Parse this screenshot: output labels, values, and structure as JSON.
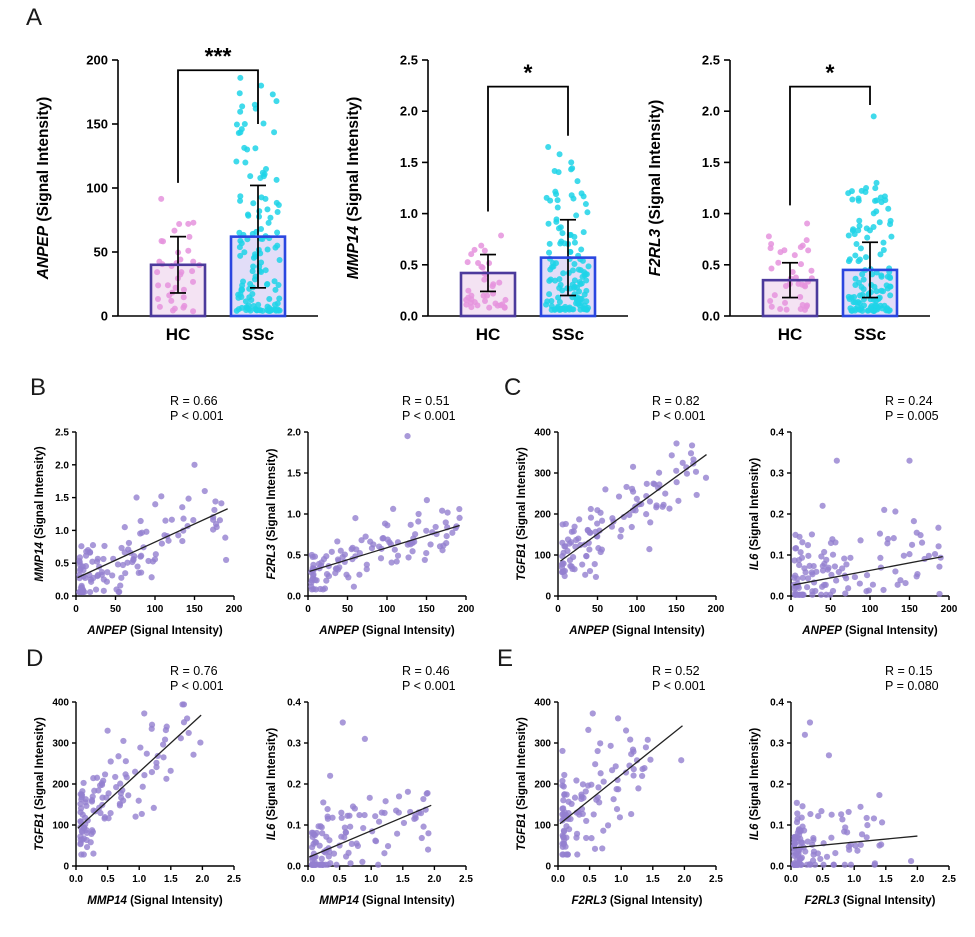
{
  "figure": {
    "panels": {
      "a": "A",
      "b": "B",
      "c": "C",
      "d": "D",
      "e": "E"
    }
  },
  "colors": {
    "hc_dot": "#e593dd",
    "hc_bar_fill": "#f4e3f3",
    "hc_bar_border": "#4c3a9c",
    "ssc_dot": "#1fd4e8",
    "ssc_bar_fill": "#e2ddf8",
    "ssc_bar_border": "#2a46e0",
    "scatter_dot": "#9480cf",
    "axis": "#000000",
    "trend_line": "#222222"
  },
  "chart_data": [
    {
      "id": "a1",
      "type": "bar",
      "panel": "A",
      "ylabel": {
        "gene": "ANPEP",
        "rest": " (Signal Intensity)"
      },
      "categories": [
        "HC",
        "SSc"
      ],
      "values": [
        40,
        62
      ],
      "errors": [
        22,
        40
      ],
      "ylim": [
        0,
        200
      ],
      "yticks": [
        0,
        50,
        100,
        150,
        200
      ],
      "ytick_labels": [
        "0",
        "50",
        "100",
        "150",
        "200"
      ],
      "significance": "***",
      "bracket": {
        "top": 192,
        "left_to": 104,
        "right_to": 150
      },
      "dots": [
        {
          "group": "HC",
          "n": 38,
          "min": 3,
          "max": 95,
          "pow": 1.7,
          "extra": []
        },
        {
          "group": "SSc",
          "n": 128,
          "min": 4,
          "max": 175,
          "pow": 2.4,
          "extra": [
            186,
            180,
            162,
            150,
            143
          ]
        }
      ],
      "seed": 11
    },
    {
      "id": "a2",
      "type": "bar",
      "panel": "A",
      "ylabel": {
        "gene": "MMP14",
        "rest": " (Signal Intensity)"
      },
      "categories": [
        "HC",
        "SSc"
      ],
      "values": [
        0.42,
        0.57
      ],
      "errors": [
        0.18,
        0.37
      ],
      "ylim": [
        0,
        2.5
      ],
      "yticks": [
        0,
        0.5,
        1,
        1.5,
        2,
        2.5
      ],
      "ytick_labels": [
        "0.0",
        "0.5",
        "1.0",
        "1.5",
        "2.0",
        "2.5"
      ],
      "significance": "*",
      "bracket": {
        "top": 2.24,
        "left_to": 1.02,
        "right_to": 1.76
      },
      "dots": [
        {
          "group": "HC",
          "n": 38,
          "min": 0.08,
          "max": 0.92,
          "pow": 1.6,
          "extra": []
        },
        {
          "group": "SSc",
          "n": 128,
          "min": 0.06,
          "max": 1.45,
          "pow": 2.2,
          "extra": [
            1.65,
            1.58,
            1.5
          ]
        }
      ],
      "seed": 22
    },
    {
      "id": "a3",
      "type": "bar",
      "panel": "A",
      "ylabel": {
        "gene": "F2RL3",
        "rest": " (Signal Intensity)"
      },
      "categories": [
        "HC",
        "SSc"
      ],
      "values": [
        0.35,
        0.45
      ],
      "errors": [
        0.17,
        0.27
      ],
      "ylim": [
        0,
        2.5
      ],
      "yticks": [
        0,
        0.5,
        1,
        1.5,
        2,
        2.5
      ],
      "ytick_labels": [
        "0.0",
        "0.5",
        "1.0",
        "1.5",
        "2.0",
        "2.5"
      ],
      "significance": "*",
      "bracket": {
        "top": 2.24,
        "left_to": 1.08,
        "right_to": 2.06
      },
      "dots": [
        {
          "group": "HC",
          "n": 38,
          "min": 0.06,
          "max": 0.98,
          "pow": 2.3,
          "extra": []
        },
        {
          "group": "SSc",
          "n": 128,
          "min": 0.05,
          "max": 1.25,
          "pow": 2.3,
          "extra": [
            1.95,
            1.3,
            1.22
          ]
        }
      ],
      "seed": 33
    },
    {
      "id": "b1",
      "type": "scatter",
      "panel": "B",
      "xlabel": {
        "gene": "ANPEP",
        "rest": " (Signal Intensity)"
      },
      "ylabel": {
        "gene": "MMP14",
        "rest": " (Signal Intensity)"
      },
      "stats": {
        "r": "R = 0.66",
        "p": "P < 0.001"
      },
      "xlim": [
        0,
        200
      ],
      "xticks": [
        0,
        50,
        100,
        150,
        200
      ],
      "xtick_labels": [
        "0",
        "50",
        "100",
        "150",
        "200"
      ],
      "ylim": [
        0,
        2.5
      ],
      "yticks": [
        0,
        0.5,
        1,
        1.5,
        2,
        2.5
      ],
      "ytick_labels": [
        "0.0",
        "0.5",
        "1.0",
        "1.5",
        "2.0",
        "2.5"
      ],
      "n": 112,
      "x_dist": {
        "min": 4,
        "max": 192,
        "pow": 2.0
      },
      "trend": {
        "x1": 2,
        "y1": 0.28,
        "x2": 192,
        "y2": 1.33
      },
      "noise": 0.25,
      "ymin_clamp": 0.06,
      "extra_points": [
        [
          150,
          2.0
        ],
        [
          163,
          1.6
        ],
        [
          108,
          1.52
        ],
        [
          178,
          1.05
        ],
        [
          190,
          0.55
        ]
      ],
      "seed": 101
    },
    {
      "id": "b2",
      "type": "scatter",
      "panel": "B",
      "xlabel": {
        "gene": "ANPEP",
        "rest": " (Signal Intensity)"
      },
      "ylabel": {
        "gene": "F2RL3",
        "rest": " (Signal Intensity)"
      },
      "stats": {
        "r": "R = 0.51",
        "p": "P < 0.001"
      },
      "xlim": [
        0,
        200
      ],
      "xticks": [
        0,
        50,
        100,
        150,
        200
      ],
      "xtick_labels": [
        "0",
        "50",
        "100",
        "150",
        "200"
      ],
      "ylim": [
        0,
        2.0
      ],
      "yticks": [
        0,
        0.5,
        1,
        1.5,
        2
      ],
      "ytick_labels": [
        "0.0",
        "0.5",
        "1.0",
        "1.5",
        "2.0"
      ],
      "n": 112,
      "x_dist": {
        "min": 4,
        "max": 192,
        "pow": 2.0
      },
      "trend": {
        "x1": 2,
        "y1": 0.3,
        "x2": 192,
        "y2": 0.86
      },
      "noise": 0.16,
      "ymin_clamp": 0.08,
      "extra_points": [
        [
          126,
          1.95
        ],
        [
          140,
          1.0
        ],
        [
          60,
          0.95
        ],
        [
          188,
          0.85
        ]
      ],
      "seed": 102
    },
    {
      "id": "c1",
      "type": "scatter",
      "panel": "C",
      "xlabel": {
        "gene": "ANPEP",
        "rest": " (Signal Intensity)"
      },
      "ylabel": {
        "gene": "TGFB1",
        "rest": " (Signal Intensity)"
      },
      "stats": {
        "r": "R = 0.82",
        "p": "P < 0.001"
      },
      "xlim": [
        0,
        200
      ],
      "xticks": [
        0,
        50,
        100,
        150,
        200
      ],
      "xtick_labels": [
        "0",
        "50",
        "100",
        "150",
        "200"
      ],
      "ylim": [
        0,
        400
      ],
      "yticks": [
        0,
        100,
        200,
        300,
        400
      ],
      "ytick_labels": [
        "0",
        "100",
        "200",
        "300",
        "400"
      ],
      "n": 110,
      "x_dist": {
        "min": 5,
        "max": 188,
        "pow": 1.9
      },
      "trend": {
        "x1": 3,
        "y1": 85,
        "x2": 188,
        "y2": 345
      },
      "noise": 38,
      "ymin_clamp": 28,
      "extra_points": [
        [
          150,
          372
        ],
        [
          95,
          315
        ],
        [
          60,
          260
        ]
      ],
      "seed": 103
    },
    {
      "id": "c2",
      "type": "scatter",
      "panel": "C",
      "xlabel": {
        "gene": "ANPEP",
        "rest": " (Signal Intensity)"
      },
      "ylabel": {
        "gene": "IL6",
        "rest": " (Signal Intensity)"
      },
      "stats": {
        "r": "R = 0.24",
        "p": "P = 0.005"
      },
      "xlim": [
        0,
        200
      ],
      "xticks": [
        0,
        50,
        100,
        150,
        200
      ],
      "xtick_labels": [
        "0",
        "50",
        "100",
        "150",
        "200"
      ],
      "ylim": [
        0,
        0.4
      ],
      "yticks": [
        0,
        0.1,
        0.2,
        0.3,
        0.4
      ],
      "ytick_labels": [
        "0.0",
        "0.1",
        "0.2",
        "0.3",
        "0.4"
      ],
      "n": 112,
      "x_dist": {
        "min": 4,
        "max": 192,
        "pow": 2.0
      },
      "trend": {
        "x1": 3,
        "y1": 0.027,
        "x2": 192,
        "y2": 0.096
      },
      "noise": 0.05,
      "ymin_clamp": 0.003,
      "extra_points": [
        [
          58,
          0.33
        ],
        [
          150,
          0.33
        ],
        [
          40,
          0.22
        ],
        [
          118,
          0.21
        ],
        [
          188,
          0.005
        ]
      ],
      "seed": 104
    },
    {
      "id": "d1",
      "type": "scatter",
      "panel": "D",
      "xlabel": {
        "gene": "MMP14",
        "rest": " (Signal Intensity)"
      },
      "ylabel": {
        "gene": "TGFB1",
        "rest": " (Signal Intensity)"
      },
      "stats": {
        "r": "R = 0.76",
        "p": "P < 0.001"
      },
      "xlim": [
        0,
        2.5
      ],
      "xticks": [
        0,
        0.5,
        1,
        1.5,
        2,
        2.5
      ],
      "xtick_labels": [
        "0.0",
        "0.5",
        "1.0",
        "1.5",
        "2.0",
        "2.5"
      ],
      "ylim": [
        0,
        400
      ],
      "yticks": [
        0,
        100,
        200,
        300,
        400
      ],
      "ytick_labels": [
        "0",
        "100",
        "200",
        "300",
        "400"
      ],
      "n": 110,
      "x_dist": {
        "min": 0.07,
        "max": 2.0,
        "pow": 2.3
      },
      "trend": {
        "x1": 0.03,
        "y1": 92,
        "x2": 1.98,
        "y2": 368
      },
      "noise": 52,
      "ymin_clamp": 28,
      "extra_points": [
        [
          1.08,
          372
        ],
        [
          0.5,
          330
        ],
        [
          0.75,
          305
        ]
      ],
      "seed": 105
    },
    {
      "id": "d2",
      "type": "scatter",
      "panel": "D",
      "xlabel": {
        "gene": "MMP14",
        "rest": " (Signal Intensity)"
      },
      "ylabel": {
        "gene": "IL6",
        "rest": " (Signal Intensity)"
      },
      "stats": {
        "r": "R = 0.46",
        "p": "P < 0.001"
      },
      "xlim": [
        0,
        2.5
      ],
      "xticks": [
        0,
        0.5,
        1,
        1.5,
        2,
        2.5
      ],
      "xtick_labels": [
        "0.0",
        "0.5",
        "1.0",
        "1.5",
        "2.0",
        "2.5"
      ],
      "ylim": [
        0,
        0.4
      ],
      "yticks": [
        0,
        0.1,
        0.2,
        0.3,
        0.4
      ],
      "ytick_labels": [
        "0.0",
        "0.1",
        "0.2",
        "0.3",
        "0.4"
      ],
      "n": 112,
      "x_dist": {
        "min": 0.06,
        "max": 2.0,
        "pow": 2.3
      },
      "trend": {
        "x1": 0.02,
        "y1": 0.022,
        "x2": 1.95,
        "y2": 0.148
      },
      "noise": 0.045,
      "ymin_clamp": 0.003,
      "extra_points": [
        [
          0.55,
          0.35
        ],
        [
          0.9,
          0.31
        ],
        [
          0.35,
          0.22
        ],
        [
          1.9,
          0.04
        ]
      ],
      "seed": 106
    },
    {
      "id": "e1",
      "type": "scatter",
      "panel": "E",
      "xlabel": {
        "gene": "F2RL3",
        "rest": " (Signal Intensity)"
      },
      "ylabel": {
        "gene": "TGFB1",
        "rest": " (Signal Intensity)"
      },
      "stats": {
        "r": "R = 0.52",
        "p": "P < 0.001"
      },
      "xlim": [
        0,
        2.5
      ],
      "xticks": [
        0,
        0.5,
        1,
        1.5,
        2,
        2.5
      ],
      "xtick_labels": [
        "0.0",
        "0.5",
        "1.0",
        "1.5",
        "2.0",
        "2.5"
      ],
      "ylim": [
        0,
        400
      ],
      "yticks": [
        0,
        100,
        200,
        300,
        400
      ],
      "ytick_labels": [
        "0",
        "100",
        "200",
        "300",
        "400"
      ],
      "n": 105,
      "x_dist": {
        "min": 0.07,
        "max": 1.55,
        "pow": 2.6
      },
      "trend": {
        "x1": 0.03,
        "y1": 103,
        "x2": 1.97,
        "y2": 342
      },
      "noise": 62,
      "ymin_clamp": 28,
      "extra_points": [
        [
          1.95,
          258
        ],
        [
          0.55,
          372
        ],
        [
          0.48,
          332
        ],
        [
          0.95,
          360
        ]
      ],
      "seed": 107
    },
    {
      "id": "e2",
      "type": "scatter",
      "panel": "E",
      "xlabel": {
        "gene": "F2RL3",
        "rest": " (Signal Intensity)"
      },
      "ylabel": {
        "gene": "IL6",
        "rest": " (Signal Intensity)"
      },
      "stats": {
        "r": "R = 0.15",
        "p": "P = 0.080"
      },
      "xlim": [
        0,
        2.5
      ],
      "xticks": [
        0,
        0.5,
        1,
        1.5,
        2,
        2.5
      ],
      "xtick_labels": [
        "0.0",
        "0.5",
        "1.0",
        "1.5",
        "2.0",
        "2.5"
      ],
      "ylim": [
        0,
        0.4
      ],
      "yticks": [
        0,
        0.1,
        0.2,
        0.3,
        0.4
      ],
      "ytick_labels": [
        "0.0",
        "0.1",
        "0.2",
        "0.3",
        "0.4"
      ],
      "n": 110,
      "x_dist": {
        "min": 0.05,
        "max": 1.45,
        "pow": 2.6
      },
      "trend": {
        "x1": 0.03,
        "y1": 0.044,
        "x2": 2.0,
        "y2": 0.073
      },
      "noise": 0.045,
      "ymin_clamp": 0.003,
      "extra_points": [
        [
          0.3,
          0.35
        ],
        [
          0.22,
          0.32
        ],
        [
          0.6,
          0.27
        ],
        [
          1.9,
          0.012
        ],
        [
          1.4,
          0.05
        ]
      ],
      "seed": 108
    }
  ]
}
